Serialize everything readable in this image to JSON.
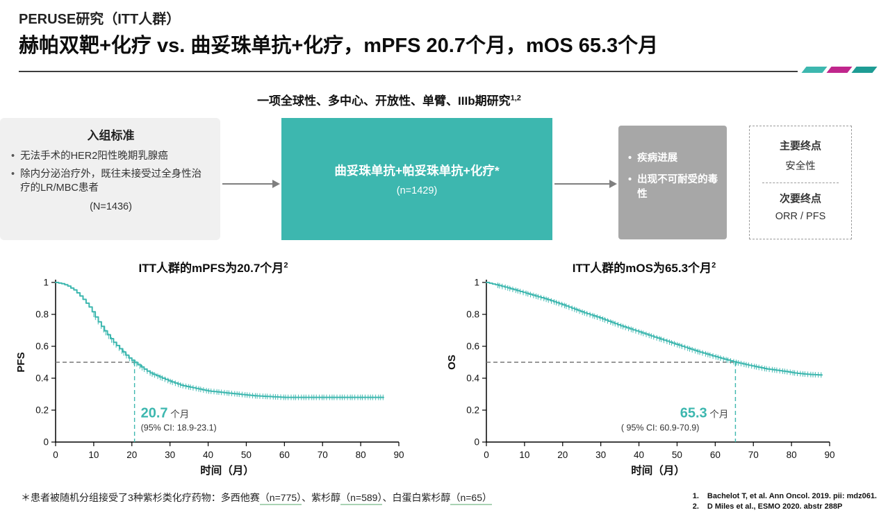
{
  "colors": {
    "teal": "#3DB7AF",
    "teal_dark": "#1E9C94",
    "magenta": "#C0268C",
    "gray_box": "#A7A7A7",
    "light_box": "#F0F0F0",
    "underline_green": "#A9D3B4"
  },
  "header": {
    "kicker": "PERUSE研究（ITT人群）",
    "title": "赫帕双靶+化疗 vs. 曲妥珠单抗+化疗，mPFS 20.7个月，mOS 65.3个月"
  },
  "study_design": {
    "subtitle": "一项全球性、多中心、开放性、单臂、IIIb期研究",
    "subtitle_sup": "1,2",
    "inclusion": {
      "title": "入组标准",
      "bullet_glyph": "•",
      "bullets": [
        "无法手术的HER2阳性晚期乳腺癌",
        "除内分泌治疗外，既往未接受过全身性治疗的LR/MBC患者"
      ],
      "n_label": "(N=1436)"
    },
    "treatment": {
      "line1": "曲妥珠单抗+帕妥珠单抗+化疗*",
      "line2": "(n=1429)"
    },
    "discontinuation": {
      "bullet_glyph": "•",
      "bullets": [
        "疾病进展",
        "出现不可耐受的毒性"
      ]
    },
    "endpoints": {
      "primary_label": "主要终点",
      "primary_value": "安全性",
      "secondary_label": "次要终点",
      "secondary_value": "ORR / PFS"
    }
  },
  "chart_data": [
    {
      "type": "line",
      "subtype": "kaplan-meier",
      "title": "ITT人群的mPFS为20.7个月",
      "title_sup": "2",
      "xlabel": "时间（月）",
      "ylabel": "PFS",
      "xlim": [
        0,
        90
      ],
      "ylim": [
        0,
        1
      ],
      "xticks": [
        0,
        10,
        20,
        30,
        40,
        50,
        60,
        70,
        80,
        90
      ],
      "yticks": [
        0,
        0.2,
        0.4,
        0.6,
        0.8,
        1
      ],
      "grid": false,
      "legend": "none",
      "median_months": 20.7,
      "median_label": "20.7",
      "median_unit": "个月",
      "ci_label": "(95% CI:  18.9-23.1)",
      "annotation_side": "right",
      "censor_start": 10,
      "series": [
        {
          "name": "曲妥珠单抗+帕妥珠单抗+化疗",
          "x": [
            0,
            2,
            3,
            5,
            7,
            9,
            11,
            13,
            15,
            17,
            19,
            20.7,
            23,
            25,
            28,
            30,
            33,
            36,
            40,
            44,
            48,
            52,
            56,
            60,
            65,
            70,
            75,
            80,
            86
          ],
          "y": [
            1.0,
            0.99,
            0.98,
            0.95,
            0.9,
            0.84,
            0.76,
            0.69,
            0.63,
            0.58,
            0.53,
            0.5,
            0.46,
            0.43,
            0.4,
            0.38,
            0.355,
            0.34,
            0.32,
            0.31,
            0.3,
            0.29,
            0.285,
            0.28,
            0.28,
            0.28,
            0.28,
            0.28,
            0.28
          ]
        }
      ]
    },
    {
      "type": "line",
      "subtype": "kaplan-meier",
      "title": "ITT人群的mOS为65.3个月",
      "title_sup": "2",
      "xlabel": "时间（月）",
      "ylabel": "OS",
      "xlim": [
        0,
        90
      ],
      "ylim": [
        0,
        1
      ],
      "xticks": [
        0,
        10,
        20,
        30,
        40,
        50,
        60,
        70,
        80,
        90
      ],
      "yticks": [
        0,
        0.2,
        0.4,
        0.6,
        0.8,
        1
      ],
      "grid": false,
      "legend": "none",
      "median_months": 65.3,
      "median_label": "65.3",
      "median_unit": "个月",
      "ci_label": "( 95% CI:  60.9-70.9)",
      "annotation_side": "left",
      "censor_start": 3,
      "series": [
        {
          "name": "曲妥珠单抗+帕妥珠单抗+化疗",
          "x": [
            0,
            5,
            10,
            15,
            20,
            25,
            30,
            35,
            40,
            45,
            50,
            55,
            60,
            63,
            65.3,
            68,
            70,
            73,
            76,
            79,
            81,
            83,
            85,
            88
          ],
          "y": [
            1.0,
            0.97,
            0.935,
            0.9,
            0.86,
            0.815,
            0.775,
            0.73,
            0.69,
            0.65,
            0.61,
            0.57,
            0.535,
            0.515,
            0.5,
            0.485,
            0.475,
            0.46,
            0.45,
            0.44,
            0.432,
            0.427,
            0.423,
            0.42
          ]
        }
      ]
    }
  ],
  "footnote": {
    "parts": [
      {
        "text": "＊患者被随机分组接受了3种紫杉类化疗药物：多西他赛",
        "underline": false
      },
      {
        "text": "（n=775）",
        "underline": true
      },
      {
        "text": "、紫杉醇",
        "underline": false
      },
      {
        "text": "（n=589）",
        "underline": true
      },
      {
        "text": "、白蛋白紫杉醇",
        "underline": false
      },
      {
        "text": "（n=65）",
        "underline": true
      }
    ]
  },
  "references": [
    {
      "num": "1.",
      "text": "Bachelot T, et al. Ann Oncol. 2019. pii: mdz061."
    },
    {
      "num": "2.",
      "text": "D Miles et al., ESMO 2020. abstr 288P"
    }
  ]
}
